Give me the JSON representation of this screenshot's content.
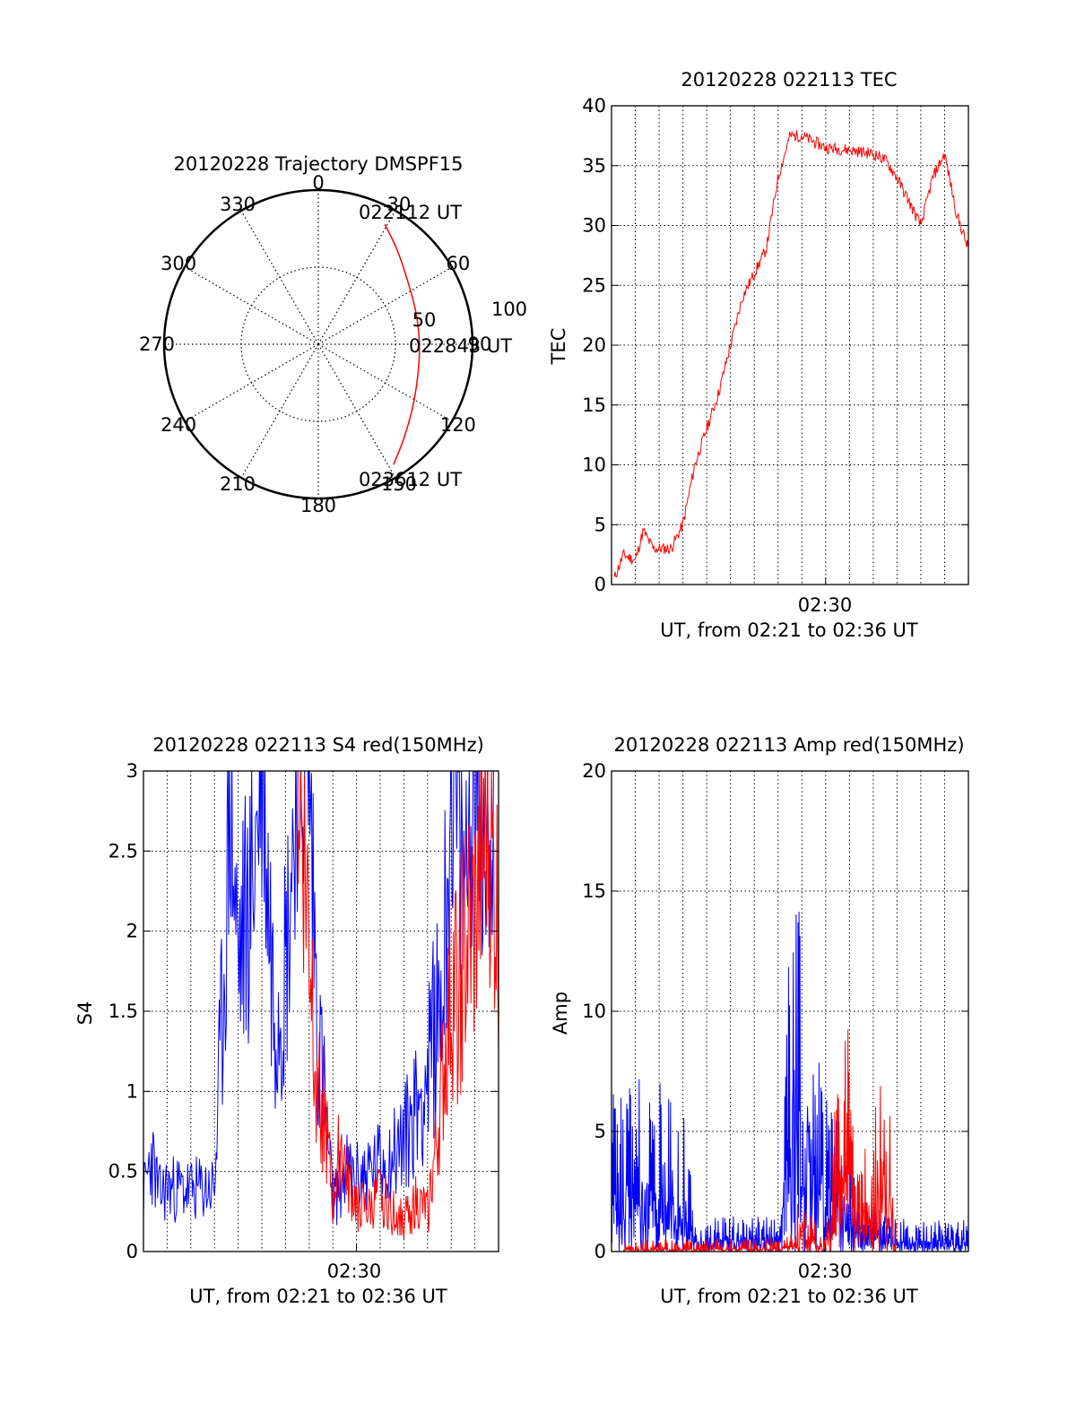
{
  "colors": {
    "series_red": "#ff0000",
    "series_blue": "#0000ff",
    "axis": "#000000",
    "grid": "#000000"
  },
  "chart_data": [
    {
      "id": "trajectory",
      "type": "polar",
      "title": "20120228 Trajectory DMSPF15",
      "angle_labels": [
        {
          "deg": 0,
          "text": "0"
        },
        {
          "deg": 30,
          "text": "30"
        },
        {
          "deg": 60,
          "text": "60"
        },
        {
          "deg": 90,
          "text": "90"
        },
        {
          "deg": 120,
          "text": "120"
        },
        {
          "deg": 150,
          "text": "150"
        },
        {
          "deg": 180,
          "text": "180"
        },
        {
          "deg": 210,
          "text": "210"
        },
        {
          "deg": 240,
          "text": "240"
        },
        {
          "deg": 270,
          "text": "270"
        },
        {
          "deg": 300,
          "text": "300"
        },
        {
          "deg": 330,
          "text": "330"
        }
      ],
      "radial_labels": [
        "50",
        "100"
      ],
      "rmax": 100,
      "track": [
        {
          "az": 29,
          "r": 89
        },
        {
          "az": 40,
          "r": 80
        },
        {
          "az": 55,
          "r": 71
        },
        {
          "az": 72,
          "r": 67
        },
        {
          "az": 90,
          "r": 66
        },
        {
          "az": 108,
          "r": 68
        },
        {
          "az": 124,
          "r": 74
        },
        {
          "az": 138,
          "r": 83
        },
        {
          "az": 148,
          "r": 92
        }
      ],
      "annotations": [
        "022112 UT",
        "022843 UT",
        "023612 UT"
      ]
    },
    {
      "id": "tec",
      "type": "line",
      "title": "20120228 022113 TEC",
      "ylabel": "TEC",
      "xlabel": "UT, from 02:21 to 02:36 UT",
      "xtick_label": "02:30",
      "ylim": [
        0,
        40
      ],
      "yticks": [
        0,
        5,
        10,
        15,
        20,
        25,
        30,
        35,
        40
      ],
      "series": [
        {
          "color": "red",
          "x": [
            "02:21:07",
            "02:21:30",
            "02:22:00",
            "02:22:20",
            "02:22:45",
            "02:23:30",
            "02:24:00",
            "02:24:30",
            "02:25:00",
            "02:25:30",
            "02:26:00",
            "02:26:30",
            "02:27:00",
            "02:27:30",
            "02:28:00",
            "02:28:30",
            "02:29:00",
            "02:29:30",
            "02:30:00",
            "02:31:00",
            "02:32:00",
            "02:32:30",
            "02:33:00",
            "02:33:30",
            "02:34:00",
            "02:34:30",
            "02:35:00",
            "02:35:30",
            "02:36:00"
          ],
          "y": [
            0.5,
            2.5,
            2,
            4.5,
            3,
            3,
            5,
            10,
            13,
            16,
            20,
            24,
            26,
            28,
            34,
            37.5,
            37.5,
            37,
            36.5,
            36.3,
            36,
            35.5,
            34,
            32,
            30,
            34,
            36,
            31,
            28
          ]
        }
      ]
    },
    {
      "id": "s4",
      "type": "line",
      "title": "20120228 022113 S4 red(150MHz)",
      "ylabel": "S4",
      "xlabel": "UT, from 02:21 to 02:36 UT",
      "xtick_label": "02:30",
      "ylim": [
        0,
        3
      ],
      "yticks": [
        "0",
        "0.5",
        "1",
        "1.5",
        "2",
        "2.5",
        "3"
      ],
      "series": [
        {
          "color": "blue",
          "x": [
            "02:21:00",
            "02:21:20",
            "02:21:40",
            "02:22:00",
            "02:23:00",
            "02:24:00",
            "02:24:20",
            "02:24:40",
            "02:25:00",
            "02:25:30",
            "02:26:00",
            "02:26:30",
            "02:27:00",
            "02:27:30",
            "02:28:00",
            "02:28:20",
            "02:28:40",
            "02:29:00",
            "02:29:30",
            "02:30:00",
            "02:30:30",
            "02:31:00",
            "02:31:30",
            "02:32:00",
            "02:32:30",
            "02:33:00",
            "02:33:20",
            "02:33:40",
            "02:34:00",
            "02:34:30",
            "02:35:00",
            "02:35:30",
            "02:36:00"
          ],
          "y": [
            0.35,
            0.6,
            0.35,
            0.4,
            0.38,
            0.4,
            1.5,
            2.8,
            1.8,
            2.2,
            3,
            1.6,
            1.8,
            3,
            3,
            1.5,
            0.9,
            0.3,
            0.5,
            0.45,
            0.5,
            0.55,
            0.6,
            0.7,
            0.9,
            1.1,
            1.4,
            1.7,
            3,
            2.2,
            3,
            2.5,
            3
          ]
        },
        {
          "color": "red",
          "x": [
            "02:27:30",
            "02:28:00",
            "02:28:20",
            "02:28:40",
            "02:29:00",
            "02:29:20",
            "02:29:40",
            "02:30:00",
            "02:30:30",
            "02:31:00",
            "02:31:30",
            "02:32:00",
            "02:32:30",
            "02:33:00",
            "02:33:20",
            "02:33:40",
            "02:34:00",
            "02:34:30",
            "02:35:00",
            "02:35:30",
            "02:36:00"
          ],
          "y": [
            3,
            2,
            1.2,
            0.8,
            0.3,
            0.7,
            0.4,
            0.3,
            0.25,
            0.35,
            0.25,
            0.2,
            0.3,
            0.25,
            0.6,
            1.1,
            1.6,
            1.8,
            2.0,
            2.6,
            2.0
          ]
        }
      ]
    },
    {
      "id": "amp",
      "type": "line",
      "title": "20120228 022113 Amp red(150MHz)",
      "ylabel": "Amp",
      "xlabel": "UT, from 02:21 to 02:36 UT",
      "xtick_label": "02:30",
      "ylim": [
        0,
        20
      ],
      "yticks": [
        0,
        5,
        10,
        15,
        20
      ],
      "series": [
        {
          "color": "blue",
          "x": [
            "02:21:00",
            "02:22:00",
            "02:23:00",
            "02:24:00",
            "02:24:30",
            "02:25:00",
            "02:26:00",
            "02:27:00",
            "02:28:00",
            "02:28:40",
            "02:29:00",
            "02:29:30",
            "02:30:00",
            "02:30:30",
            "02:31:00",
            "02:31:30",
            "02:32:00",
            "02:33:00",
            "02:34:00",
            "02:35:00",
            "02:36:00"
          ],
          "y": [
            3,
            3.2,
            3.1,
            3,
            0.4,
            0.5,
            0.6,
            0.6,
            0.5,
            8,
            6,
            4,
            3,
            2.5,
            1.5,
            1,
            0.8,
            0.5,
            0.5,
            0.5,
            0.5
          ]
        },
        {
          "color": "red",
          "x": [
            "02:21:30",
            "02:24:00",
            "02:28:40",
            "02:29:00",
            "02:29:20",
            "02:29:40",
            "02:30:00",
            "02:30:30",
            "02:31:00",
            "02:31:30",
            "02:32:00",
            "02:32:30",
            "02:33:00"
          ],
          "y": [
            0.1,
            0.1,
            0.2,
            1.5,
            0.8,
            0.2,
            0.3,
            3.5,
            4.5,
            1.5,
            2.5,
            3.5,
            1
          ]
        }
      ]
    }
  ]
}
